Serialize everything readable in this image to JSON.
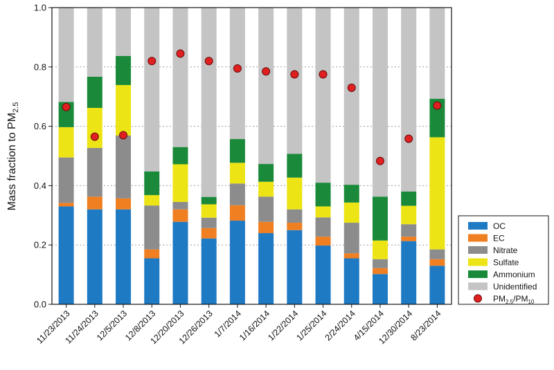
{
  "chart_data": {
    "type": "bar",
    "stacked": true,
    "ylabel": "Mass fraction to PM2.5",
    "ylabel_main": "Mass fraction to PM",
    "ylabel_sub": "2.5",
    "ylim": [
      0,
      1.0
    ],
    "yticks": [
      0.0,
      0.2,
      0.4,
      0.6,
      0.8,
      1.0
    ],
    "ytick_labels": [
      "0.0",
      "0.2",
      "0.4",
      "0.6",
      "0.8",
      "1.0"
    ],
    "grid": true,
    "legend_position": "bottom-right",
    "categories": [
      "11/23/2013",
      "11/24/2013",
      "12/5/2013",
      "12/8/2013",
      "12/20/2013",
      "12/26/2013",
      "1/7/2014",
      "1/16/2014",
      "1/22/2014",
      "1/25/2014",
      "2/24/2014",
      "4/15/2014",
      "12/30/2014",
      "8/23/2014"
    ],
    "series": [
      {
        "name": "OC",
        "color": "#1f7ac4",
        "values": [
          0.33,
          0.32,
          0.32,
          0.155,
          0.278,
          0.222,
          0.282,
          0.24,
          0.25,
          0.198,
          0.155,
          0.102,
          0.213,
          0.13
        ]
      },
      {
        "name": "EC",
        "color": "#f07f22",
        "values": [
          0.012,
          0.043,
          0.037,
          0.03,
          0.042,
          0.035,
          0.052,
          0.038,
          0.025,
          0.03,
          0.017,
          0.02,
          0.015,
          0.022
        ]
      },
      {
        "name": "Nitrate",
        "color": "#8c8c8c",
        "values": [
          0.153,
          0.164,
          0.212,
          0.148,
          0.025,
          0.035,
          0.073,
          0.085,
          0.045,
          0.065,
          0.103,
          0.03,
          0.042,
          0.033
        ]
      },
      {
        "name": "Sulfate",
        "color": "#ece415",
        "values": [
          0.102,
          0.135,
          0.17,
          0.035,
          0.127,
          0.045,
          0.07,
          0.05,
          0.107,
          0.037,
          0.068,
          0.063,
          0.062,
          0.378
        ]
      },
      {
        "name": "Ammonium",
        "color": "#1a8a3a",
        "values": [
          0.085,
          0.105,
          0.098,
          0.08,
          0.058,
          0.025,
          0.08,
          0.06,
          0.08,
          0.08,
          0.06,
          0.148,
          0.048,
          0.13
        ]
      },
      {
        "name": "Unidentified",
        "color": "#c4c4c4",
        "values": [
          0.318,
          0.233,
          0.163,
          0.552,
          0.47,
          0.638,
          0.443,
          0.527,
          0.493,
          0.59,
          0.597,
          0.637,
          0.62,
          0.307
        ]
      }
    ],
    "ratio_series": {
      "name": "PM2.5/PM10",
      "label_a": "PM",
      "sub_a": "2.5",
      "label_sep": "/PM",
      "sub_b": "10",
      "color": "#e02020",
      "values": [
        0.665,
        0.565,
        0.57,
        0.82,
        0.845,
        0.82,
        0.795,
        0.785,
        0.775,
        0.775,
        0.73,
        0.483,
        0.558,
        0.67
      ]
    }
  }
}
